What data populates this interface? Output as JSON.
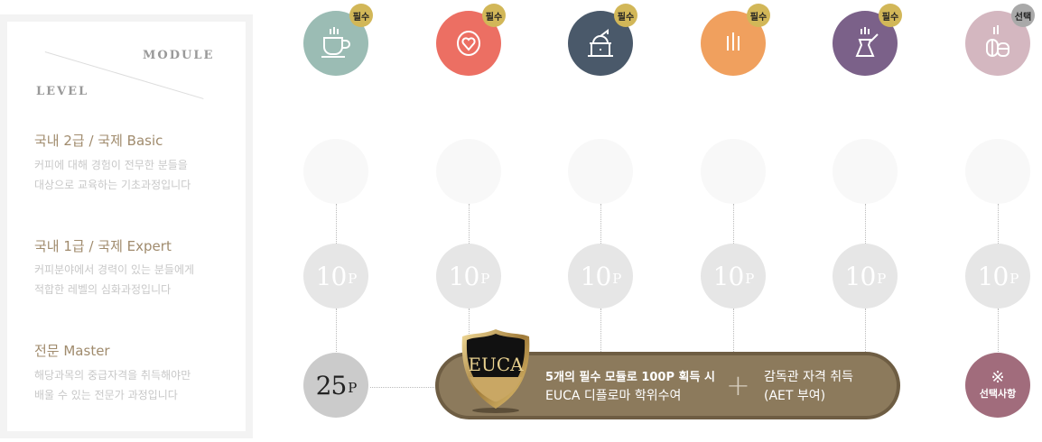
{
  "header": {
    "module_label": "MODULE",
    "level_label": "LEVEL"
  },
  "levels": [
    {
      "title": "국내 2급 / 국제 Basic",
      "desc1": "커피에 대해 경험이 전무한 분들을",
      "desc2": "대상으로 교육하는 기초과정입니다"
    },
    {
      "title": "국내 1급 / 국제 Expert",
      "desc1": "커피분야에서 경력이 있는 분들에게",
      "desc2": "적합한 레벨의 심화과정입니다"
    },
    {
      "title": "전문 Master",
      "desc1": "해당과목의 중급자격을 취득해야만",
      "desc2": "배울 수 있는 전문가 과정입니다"
    }
  ],
  "modules": [
    {
      "icon": "coffee-cup-icon",
      "color": "#9bbcb4",
      "badge": "필수",
      "badge_color": "#d2b758",
      "points": "10",
      "unit": "P"
    },
    {
      "icon": "heart-latte-icon",
      "color": "#ec6f63",
      "badge": "필수",
      "badge_color": "#d2b758",
      "points": "10",
      "unit": "P"
    },
    {
      "icon": "coffee-grinder-icon",
      "color": "#4a596a",
      "badge": "필수",
      "badge_color": "#d2b758",
      "points": "10",
      "unit": "P"
    },
    {
      "icon": "steam-lines-icon",
      "color": "#f0a05e",
      "badge": "필수",
      "badge_color": "#d2b758",
      "points": "10",
      "unit": "P"
    },
    {
      "icon": "turkish-pot-icon",
      "color": "#7b6189",
      "badge": "필수",
      "badge_color": "#d2b758",
      "points": "10",
      "unit": "P"
    },
    {
      "icon": "coffee-bean-icon",
      "color": "#d4b7c0",
      "badge": "선택",
      "badge_color": "#a9a9a9",
      "points": "10",
      "unit": "P"
    }
  ],
  "master": {
    "points": "25",
    "unit": "P"
  },
  "diploma": {
    "logo_text": "EUCA",
    "line1": "5개의 필수 모듈로 100P 획득 시",
    "line2": "EUCA 디플로마 학위수여",
    "plus": "+",
    "line3": "감독관 자격 취득",
    "line4": "(AET 부여)"
  },
  "optional": {
    "symbol": "※",
    "label": "선택사항",
    "color": "#a16c7c"
  }
}
